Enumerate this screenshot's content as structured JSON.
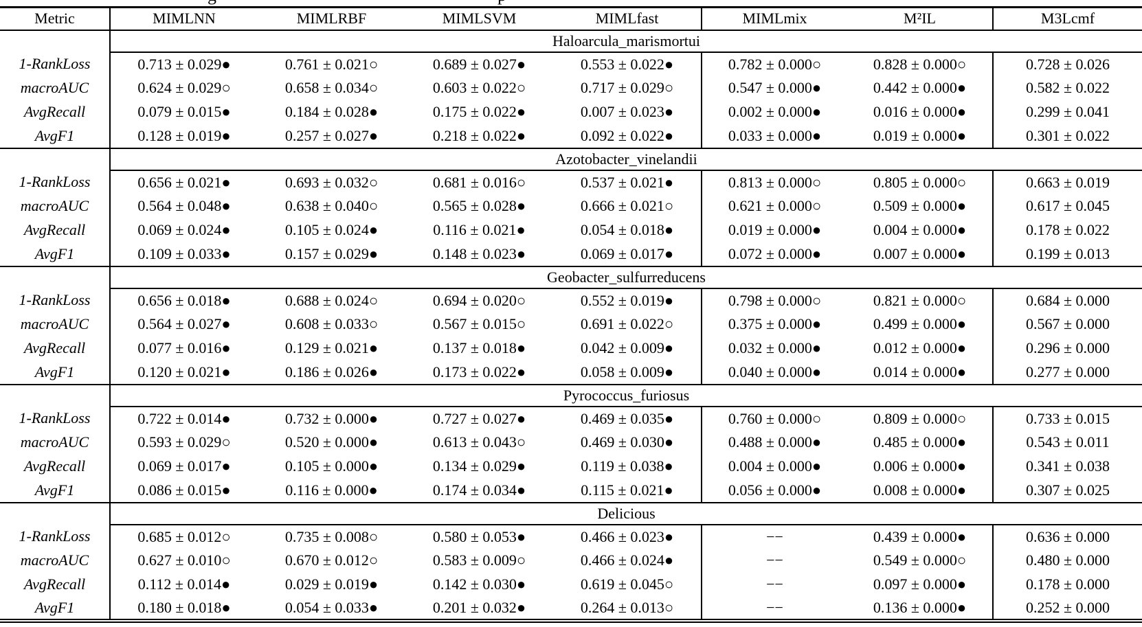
{
  "caption_fragment": {
    "glyphs": [
      "g",
      "p"
    ]
  },
  "table": {
    "columns": [
      "Metric",
      "MIMLNN",
      "MIMLRBF",
      "MIMLSVM",
      "MIMLfast",
      "MIMLmix",
      "M²IL",
      "M3Lcmf"
    ],
    "sections": [
      {
        "dataset": "Haloarcula_marismortui",
        "rows": [
          {
            "metric": "1-RankLoss",
            "cells": [
              "0.713 ± 0.029●",
              "0.761 ± 0.021○",
              "0.689 ± 0.027●",
              "0.553 ± 0.022●",
              "0.782 ± 0.000○",
              "0.828 ± 0.000○",
              "0.728 ± 0.026"
            ]
          },
          {
            "metric": "macroAUC",
            "cells": [
              "0.624 ± 0.029○",
              "0.658 ± 0.034○",
              "0.603 ± 0.022○",
              "0.717 ± 0.029○",
              "0.547 ± 0.000●",
              "0.442 ± 0.000●",
              "0.582 ± 0.022"
            ]
          },
          {
            "metric": "AvgRecall",
            "cells": [
              "0.079 ± 0.015●",
              "0.184 ± 0.028●",
              "0.175 ± 0.022●",
              "0.007 ± 0.023●",
              "0.002 ± 0.000●",
              "0.016 ± 0.000●",
              "0.299 ± 0.041"
            ]
          },
          {
            "metric": "AvgF1",
            "cells": [
              "0.128 ± 0.019●",
              "0.257 ± 0.027●",
              "0.218 ± 0.022●",
              "0.092 ± 0.022●",
              "0.033 ± 0.000●",
              "0.019 ± 0.000●",
              "0.301 ± 0.022"
            ]
          }
        ]
      },
      {
        "dataset": "Azotobacter_vinelandii",
        "rows": [
          {
            "metric": "1-RankLoss",
            "cells": [
              "0.656 ± 0.021●",
              "0.693 ± 0.032○",
              "0.681 ± 0.016○",
              "0.537 ± 0.021●",
              "0.813 ± 0.000○",
              "0.805 ± 0.000○",
              "0.663 ± 0.019"
            ]
          },
          {
            "metric": "macroAUC",
            "cells": [
              "0.564 ± 0.048●",
              "0.638 ± 0.040○",
              "0.565 ± 0.028●",
              "0.666 ± 0.021○",
              "0.621 ± 0.000○",
              "0.509 ± 0.000●",
              "0.617 ± 0.045"
            ]
          },
          {
            "metric": "AvgRecall",
            "cells": [
              "0.069 ± 0.024●",
              "0.105 ± 0.024●",
              "0.116 ± 0.021●",
              "0.054 ± 0.018●",
              "0.019 ± 0.000●",
              "0.004 ± 0.000●",
              "0.178 ± 0.022"
            ]
          },
          {
            "metric": "AvgF1",
            "cells": [
              "0.109 ± 0.033●",
              "0.157 ± 0.029●",
              "0.148 ± 0.023●",
              "0.069 ± 0.017●",
              "0.072 ± 0.000●",
              "0.007 ± 0.000●",
              "0.199 ± 0.013"
            ]
          }
        ]
      },
      {
        "dataset": "Geobacter_sulfurreducens",
        "rows": [
          {
            "metric": "1-RankLoss",
            "cells": [
              "0.656 ± 0.018●",
              "0.688 ± 0.024○",
              "0.694 ± 0.020○",
              "0.552 ± 0.019●",
              "0.798 ± 0.000○",
              "0.821 ± 0.000○",
              "0.684 ± 0.000"
            ]
          },
          {
            "metric": "macroAUC",
            "cells": [
              "0.564 ± 0.027●",
              "0.608 ± 0.033○",
              "0.567 ± 0.015○",
              "0.691 ± 0.022○",
              "0.375 ± 0.000●",
              "0.499 ± 0.000●",
              "0.567 ± 0.000"
            ]
          },
          {
            "metric": "AvgRecall",
            "cells": [
              "0.077 ± 0.016●",
              "0.129 ± 0.021●",
              "0.137 ± 0.018●",
              "0.042 ± 0.009●",
              "0.032 ± 0.000●",
              "0.012 ± 0.000●",
              "0.296 ± 0.000"
            ]
          },
          {
            "metric": "AvgF1",
            "cells": [
              "0.120 ± 0.021●",
              "0.186 ± 0.026●",
              "0.173 ± 0.022●",
              "0.058 ± 0.009●",
              "0.040 ± 0.000●",
              "0.014 ± 0.000●",
              "0.277 ± 0.000"
            ]
          }
        ]
      },
      {
        "dataset": "Pyrococcus_furiosus",
        "rows": [
          {
            "metric": "1-RankLoss",
            "cells": [
              "0.722 ± 0.014●",
              "0.732 ± 0.000●",
              "0.727 ± 0.027●",
              "0.469 ± 0.035●",
              "0.760 ± 0.000○",
              "0.809 ± 0.000○",
              "0.733 ± 0.015"
            ]
          },
          {
            "metric": "macroAUC",
            "cells": [
              "0.593 ± 0.029○",
              "0.520 ± 0.000●",
              "0.613 ± 0.043○",
              "0.469 ± 0.030●",
              "0.488 ± 0.000●",
              "0.485 ± 0.000●",
              "0.543 ± 0.011"
            ]
          },
          {
            "metric": "AvgRecall",
            "cells": [
              "0.069 ± 0.017●",
              "0.105 ± 0.000●",
              "0.134 ± 0.029●",
              "0.119 ± 0.038●",
              "0.004 ± 0.000●",
              "0.006 ± 0.000●",
              "0.341 ± 0.038"
            ]
          },
          {
            "metric": "AvgF1",
            "cells": [
              "0.086 ± 0.015●",
              "0.116 ± 0.000●",
              "0.174 ± 0.034●",
              "0.115 ± 0.021●",
              "0.056 ± 0.000●",
              "0.008 ± 0.000●",
              "0.307 ± 0.025"
            ]
          }
        ]
      },
      {
        "dataset": "Delicious",
        "rows": [
          {
            "metric": "1-RankLoss",
            "cells": [
              "0.685 ± 0.012○",
              "0.735 ± 0.008○",
              "0.580 ± 0.053●",
              "0.466 ± 0.023●",
              "−−",
              "0.439 ± 0.000●",
              "0.636 ± 0.000"
            ]
          },
          {
            "metric": "macroAUC",
            "cells": [
              "0.627 ± 0.010○",
              "0.670 ± 0.012○",
              "0.583 ± 0.009○",
              "0.466 ± 0.024●",
              "−−",
              "0.549 ± 0.000○",
              "0.480 ± 0.000"
            ]
          },
          {
            "metric": "AvgRecall",
            "cells": [
              "0.112 ± 0.014●",
              "0.029 ± 0.019●",
              "0.142 ± 0.030●",
              "0.619 ± 0.045○",
              "−−",
              "0.097 ± 0.000●",
              "0.178 ± 0.000"
            ]
          },
          {
            "metric": "AvgF1",
            "cells": [
              "0.180 ± 0.018●",
              "0.054 ± 0.033●",
              "0.201 ± 0.032●",
              "0.264 ± 0.013○",
              "−−",
              "0.136 ± 0.000●",
              "0.252 ± 0.000"
            ]
          }
        ]
      }
    ]
  }
}
